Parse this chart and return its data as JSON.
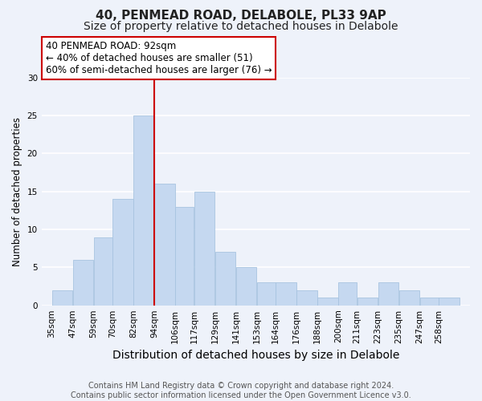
{
  "title": "40, PENMEAD ROAD, DELABOLE, PL33 9AP",
  "subtitle": "Size of property relative to detached houses in Delabole",
  "xlabel": "Distribution of detached houses by size in Delabole",
  "ylabel": "Number of detached properties",
  "bar_color": "#c5d8f0",
  "bar_edge_color": "#a8c4e0",
  "background_color": "#eef2fa",
  "grid_color": "#ffffff",
  "annotation_border_color": "#cc0000",
  "vline_color": "#cc0000",
  "vline_x_bin": 5,
  "annotation_line1": "40 PENMEAD ROAD: 92sqm",
  "annotation_line2": "← 40% of detached houses are smaller (51)",
  "annotation_line3": "60% of semi-detached houses are larger (76) →",
  "bins": [
    35,
    47,
    59,
    70,
    82,
    94,
    106,
    117,
    129,
    141,
    153,
    164,
    176,
    188,
    200,
    211,
    223,
    235,
    247,
    258,
    270
  ],
  "counts": [
    2,
    6,
    9,
    14,
    25,
    16,
    13,
    15,
    7,
    5,
    3,
    3,
    2,
    1,
    3,
    1,
    3,
    2,
    1,
    1
  ],
  "ylim": [
    0,
    30
  ],
  "yticks": [
    0,
    5,
    10,
    15,
    20,
    25,
    30
  ],
  "footer_line1": "Contains HM Land Registry data © Crown copyright and database right 2024.",
  "footer_line2": "Contains public sector information licensed under the Open Government Licence v3.0.",
  "title_fontsize": 11,
  "subtitle_fontsize": 10,
  "xlabel_fontsize": 10,
  "ylabel_fontsize": 8.5,
  "tick_fontsize": 7.5,
  "annot_fontsize": 8.5,
  "footer_fontsize": 7
}
